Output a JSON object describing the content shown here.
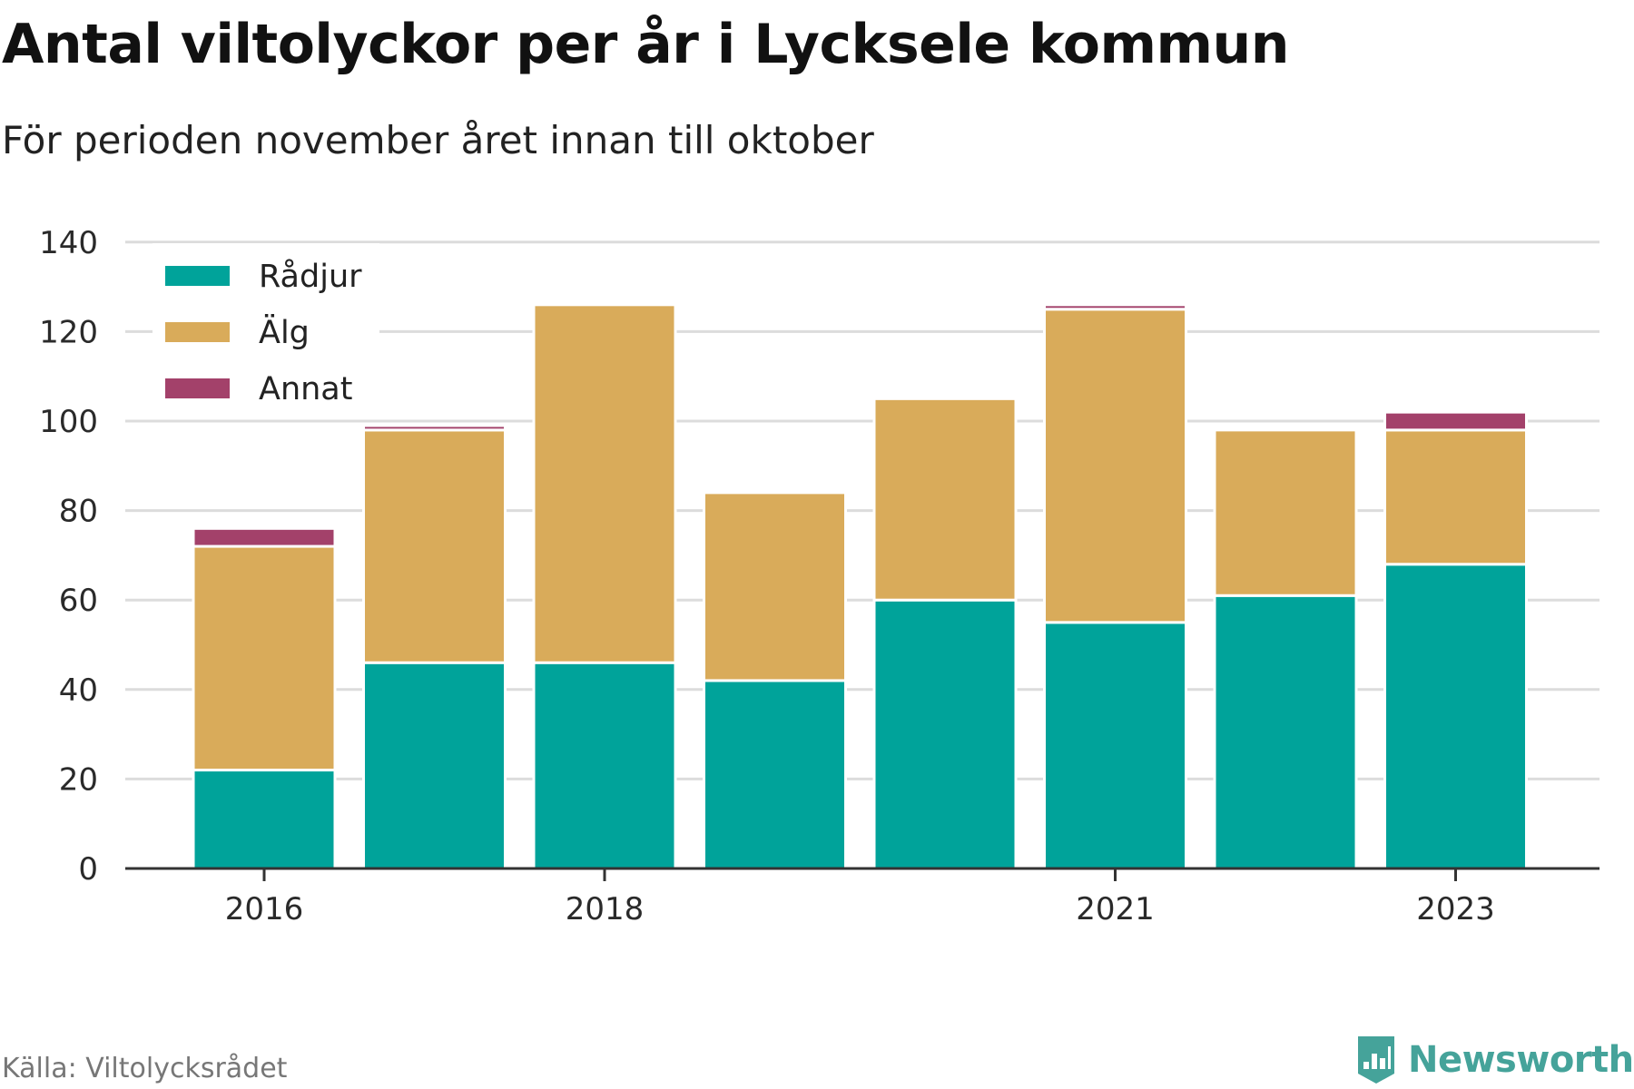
{
  "title": "Antal viltolyckor per år i Lycksele kommun",
  "subtitle": "För perioden november året innan till oktober",
  "source": "Källa: Viltolycksrådet",
  "brand": {
    "name": "Newsworthy",
    "logo_icon": "bar-chart-tag-icon",
    "color": "#45a39a"
  },
  "chart_data": {
    "type": "bar",
    "stacked": true,
    "categories": [
      "2016",
      "2017",
      "2018",
      "2019",
      "2020",
      "2021",
      "2022",
      "2023"
    ],
    "x_tick_labels": [
      "2016",
      "",
      "2018",
      "",
      "",
      "2021",
      "",
      "2023"
    ],
    "y_ticks": [
      "0",
      "20",
      "40",
      "60",
      "80",
      "100",
      "120",
      "140"
    ],
    "ylim": [
      0,
      140
    ],
    "grid": true,
    "legend_position": "top-left",
    "series": [
      {
        "name": "Rådjur",
        "color": "#00a39a",
        "values": [
          22,
          46,
          46,
          42,
          60,
          55,
          61,
          68
        ]
      },
      {
        "name": "Älg",
        "color": "#d9ab5a",
        "values": [
          50,
          52,
          80,
          42,
          45,
          70,
          37,
          30
        ]
      },
      {
        "name": "Annat",
        "color": "#a3416a",
        "values": [
          4,
          1,
          0,
          0,
          0,
          1,
          0,
          4
        ]
      }
    ]
  }
}
